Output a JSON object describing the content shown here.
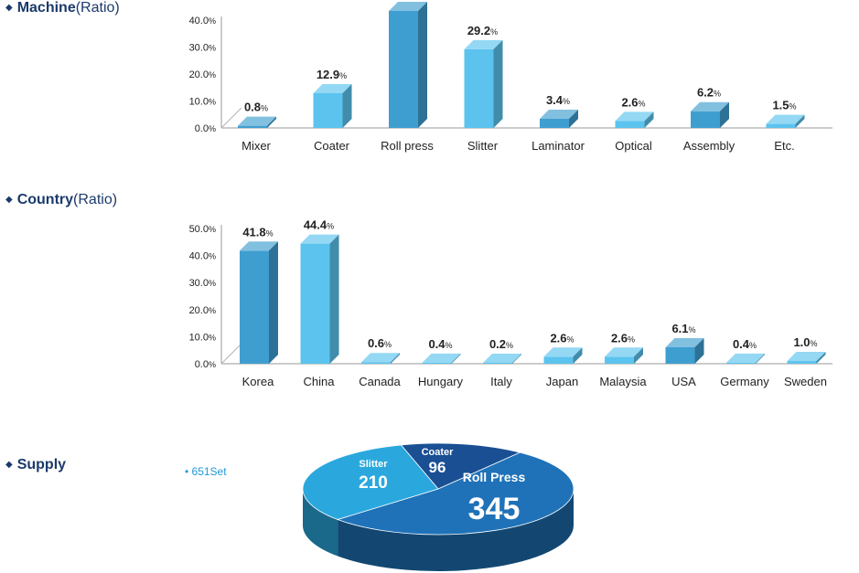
{
  "sections": {
    "machine": {
      "title": "Machine",
      "sub": "(Ratio)"
    },
    "country": {
      "title": "Country",
      "sub": "(Ratio)"
    },
    "supply": {
      "title": "Supply"
    }
  },
  "supply_total": "• 651Set",
  "chart_data": [
    {
      "type": "bar",
      "title": "Machine (Ratio)",
      "categories": [
        "Mixer",
        "Coater",
        "Roll press",
        "Slitter",
        "Laminator",
        "Optical",
        "Assembly",
        "Etc."
      ],
      "values": [
        0.8,
        12.9,
        43.4,
        29.2,
        3.4,
        2.6,
        6.2,
        1.5
      ],
      "unit": "%",
      "ylim": [
        0,
        40
      ],
      "yticks": [
        0,
        10,
        20,
        30,
        40
      ],
      "colors": [
        "#3f9ed0",
        "#5bc3ee",
        "#3f9ed0",
        "#5bc3ee",
        "#3f9ed0",
        "#5bc3ee",
        "#3f9ed0",
        "#5bc3ee"
      ],
      "grid": false
    },
    {
      "type": "bar",
      "title": "Country (Ratio)",
      "categories": [
        "Korea",
        "China",
        "Canada",
        "Hungary",
        "Italy",
        "Japan",
        "Malaysia",
        "USA",
        "Germany",
        "Sweden"
      ],
      "values": [
        41.8,
        44.4,
        0.6,
        0.4,
        0.2,
        2.6,
        2.6,
        6.1,
        0.4,
        1.0
      ],
      "unit": "%",
      "ylim": [
        0,
        50
      ],
      "yticks": [
        0,
        10,
        20,
        30,
        40,
        50
      ],
      "colors": [
        "#3f9ed0",
        "#5bc3ee",
        "#5bc3ee",
        "#5bc3ee",
        "#5bc3ee",
        "#5bc3ee",
        "#5bc3ee",
        "#3f9ed0",
        "#5bc3ee",
        "#5bc3ee"
      ],
      "grid": false
    },
    {
      "type": "pie",
      "title": "Supply",
      "categories": [
        "Roll Press",
        "Slitter",
        "Coater"
      ],
      "values": [
        345,
        210,
        96
      ],
      "colors": [
        "#1f72b8",
        "#2aa8de",
        "#1a4f93"
      ]
    }
  ]
}
